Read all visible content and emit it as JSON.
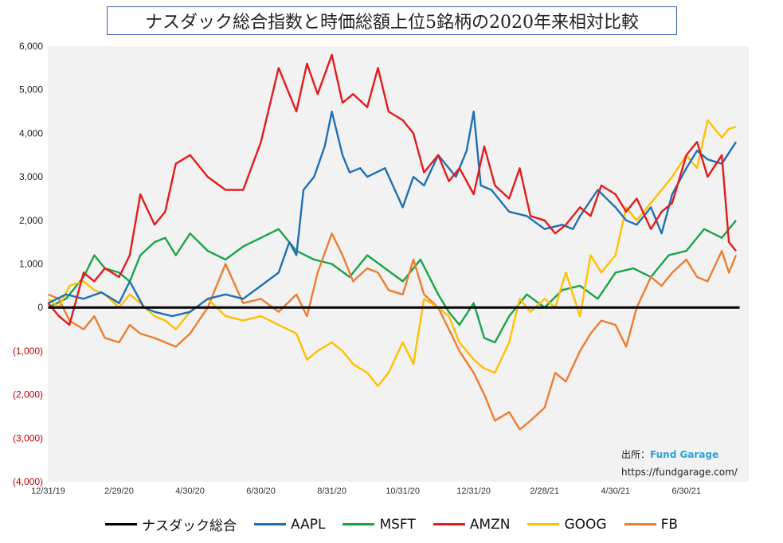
{
  "chart_data": {
    "type": "line",
    "title": "ナスダック総合指数と時価総額上位5銘柄の2020年来相対比較",
    "xlabel": "",
    "ylabel": "",
    "ylim": [
      -4000,
      6000
    ],
    "y_ticks": [
      6000,
      5000,
      4000,
      3000,
      2000,
      1000,
      0,
      -1000,
      -2000,
      -3000,
      -4000
    ],
    "y_tick_labels": [
      "6,000",
      "5,000",
      "4,000",
      "3,000",
      "2,000",
      "1,000",
      "0",
      "(1,000)",
      "(2,000)",
      "(3,000)",
      "(4,000)"
    ],
    "x_tick_labels": [
      "12/31/19",
      "2/29/20",
      "4/30/20",
      "6/30/20",
      "8/31/20",
      "10/31/20",
      "12/31/20",
      "2/28/21",
      "4/30/21",
      "6/30/21"
    ],
    "x_range_months": [
      0,
      19.5
    ],
    "series": [
      {
        "name": "ナスダック総合",
        "color": "#000000",
        "x": [
          0,
          19.5
        ],
        "values": [
          0,
          0
        ]
      },
      {
        "name": "AAPL",
        "color": "#1f6fb5",
        "x": [
          0,
          0.5,
          1,
          1.5,
          2,
          2.3,
          2.7,
          3,
          3.5,
          4,
          4.5,
          5,
          5.5,
          6,
          6.5,
          6.8,
          7,
          7.2,
          7.5,
          7.8,
          8,
          8.3,
          8.5,
          8.8,
          9,
          9.5,
          10,
          10.3,
          10.6,
          11,
          11.5,
          11.8,
          12,
          12.2,
          12.5,
          13,
          13.5,
          14,
          14.5,
          14.8,
          15,
          15.5,
          16,
          16.3,
          16.6,
          17,
          17.3,
          17.6,
          18,
          18.3,
          18.6,
          19,
          19.4
        ],
        "values": [
          100,
          300,
          200,
          350,
          100,
          600,
          0,
          -100,
          -200,
          -100,
          200,
          300,
          200,
          500,
          800,
          1500,
          1200,
          2700,
          3000,
          3700,
          4500,
          3500,
          3100,
          3200,
          3000,
          3200,
          2300,
          3000,
          2800,
          3500,
          3000,
          3600,
          4500,
          2800,
          2700,
          2200,
          2100,
          1800,
          1900,
          1800,
          2100,
          2700,
          2300,
          2000,
          1900,
          2300,
          1700,
          2600,
          3200,
          3600,
          3400,
          3300,
          3800
        ]
      },
      {
        "name": "MSFT",
        "color": "#1aa34a",
        "x": [
          0,
          0.5,
          1,
          1.3,
          1.6,
          2,
          2.3,
          2.6,
          3,
          3.3,
          3.6,
          4,
          4.5,
          5,
          5.5,
          6,
          6.5,
          7,
          7.5,
          8,
          8.5,
          9,
          9.5,
          10,
          10.5,
          11,
          11.3,
          11.6,
          12,
          12.3,
          12.6,
          13,
          13.5,
          14,
          14.5,
          15,
          15.5,
          16,
          16.5,
          17,
          17.5,
          18,
          18.5,
          19,
          19.4
        ],
        "values": [
          0,
          200,
          700,
          1200,
          900,
          800,
          600,
          1200,
          1500,
          1600,
          1200,
          1700,
          1300,
          1100,
          1400,
          1600,
          1800,
          1300,
          1100,
          1000,
          700,
          1200,
          900,
          600,
          1100,
          300,
          -100,
          -400,
          100,
          -700,
          -800,
          -200,
          300,
          0,
          400,
          500,
          200,
          800,
          900,
          700,
          1200,
          1300,
          1800,
          1600,
          2000
        ]
      },
      {
        "name": "AMZN",
        "color": "#e31b1b",
        "x": [
          0,
          0.3,
          0.6,
          1,
          1.3,
          1.6,
          2,
          2.3,
          2.6,
          3,
          3.3,
          3.6,
          4,
          4.5,
          5,
          5.5,
          6,
          6.5,
          7,
          7.3,
          7.6,
          8,
          8.3,
          8.6,
          9,
          9.3,
          9.6,
          10,
          10.3,
          10.6,
          11,
          11.3,
          11.6,
          12,
          12.3,
          12.6,
          13,
          13.3,
          13.6,
          14,
          14.3,
          14.6,
          15,
          15.3,
          15.6,
          16,
          16.3,
          16.6,
          17,
          17.3,
          17.6,
          18,
          18.3,
          18.6,
          19,
          19.2,
          19.4
        ],
        "values": [
          100,
          -200,
          -400,
          800,
          600,
          900,
          700,
          1200,
          2600,
          1900,
          2200,
          3300,
          3500,
          3000,
          2700,
          2700,
          3800,
          5500,
          4500,
          5600,
          4900,
          5800,
          4700,
          4900,
          4600,
          5500,
          4500,
          4300,
          4000,
          3100,
          3500,
          2900,
          3200,
          2600,
          3700,
          2800,
          2500,
          3200,
          2100,
          2000,
          1700,
          1900,
          2300,
          2100,
          2800,
          2600,
          2200,
          2500,
          1800,
          2200,
          2400,
          3500,
          3800,
          3000,
          3500,
          1500,
          1300
        ]
      },
      {
        "name": "GOOG",
        "color": "#ffc000",
        "x": [
          0,
          0.3,
          0.6,
          1,
          1.3,
          1.6,
          2,
          2.3,
          2.6,
          3,
          3.3,
          3.6,
          4,
          4.5,
          5,
          5.5,
          6,
          6.5,
          7,
          7.3,
          7.6,
          8,
          8.3,
          8.6,
          9,
          9.3,
          9.6,
          10,
          10.3,
          10.6,
          11,
          11.3,
          11.6,
          12,
          12.3,
          12.6,
          13,
          13.3,
          13.6,
          14,
          14.3,
          14.6,
          15,
          15.3,
          15.6,
          16,
          16.3,
          16.6,
          17,
          17.3,
          17.6,
          18,
          18.3,
          18.6,
          19,
          19.2,
          19.4
        ],
        "values": [
          200,
          0,
          500,
          600,
          400,
          300,
          0,
          300,
          100,
          -200,
          -300,
          -500,
          -100,
          200,
          -200,
          -300,
          -200,
          -400,
          -600,
          -1200,
          -1000,
          -800,
          -1000,
          -1300,
          -1500,
          -1800,
          -1500,
          -800,
          -1300,
          200,
          0,
          -200,
          -800,
          -1200,
          -1400,
          -1500,
          -800,
          200,
          -100,
          200,
          0,
          800,
          -200,
          1200,
          800,
          1200,
          2300,
          2000,
          2400,
          2700,
          3000,
          3500,
          3200,
          4300,
          3900,
          4100,
          4150
        ]
      },
      {
        "name": "FB",
        "color": "#ed7d31",
        "x": [
          0,
          0.3,
          0.6,
          1,
          1.3,
          1.6,
          2,
          2.3,
          2.6,
          3,
          3.3,
          3.6,
          4,
          4.5,
          5,
          5.5,
          6,
          6.5,
          7,
          7.3,
          7.6,
          8,
          8.3,
          8.6,
          9,
          9.3,
          9.6,
          10,
          10.3,
          10.6,
          11,
          11.3,
          11.6,
          12,
          12.3,
          12.6,
          13,
          13.3,
          13.6,
          14,
          14.3,
          14.6,
          15,
          15.3,
          15.6,
          16,
          16.3,
          16.6,
          17,
          17.3,
          17.6,
          18,
          18.3,
          18.6,
          19,
          19.2,
          19.4
        ],
        "values": [
          300,
          200,
          -300,
          -500,
          -200,
          -700,
          -800,
          -400,
          -600,
          -700,
          -800,
          -900,
          -600,
          0,
          1000,
          100,
          200,
          -100,
          300,
          -200,
          800,
          1700,
          1200,
          600,
          900,
          800,
          400,
          300,
          1100,
          300,
          0,
          -500,
          -1000,
          -1500,
          -2000,
          -2600,
          -2400,
          -2800,
          -2600,
          -2300,
          -1500,
          -1700,
          -1000,
          -600,
          -300,
          -400,
          -900,
          0,
          700,
          500,
          800,
          1100,
          700,
          600,
          1300,
          800,
          1200
        ]
      }
    ]
  },
  "source": {
    "label": "出所：",
    "brand": "Fund Garage",
    "url": "https://fundgarage.com/"
  }
}
